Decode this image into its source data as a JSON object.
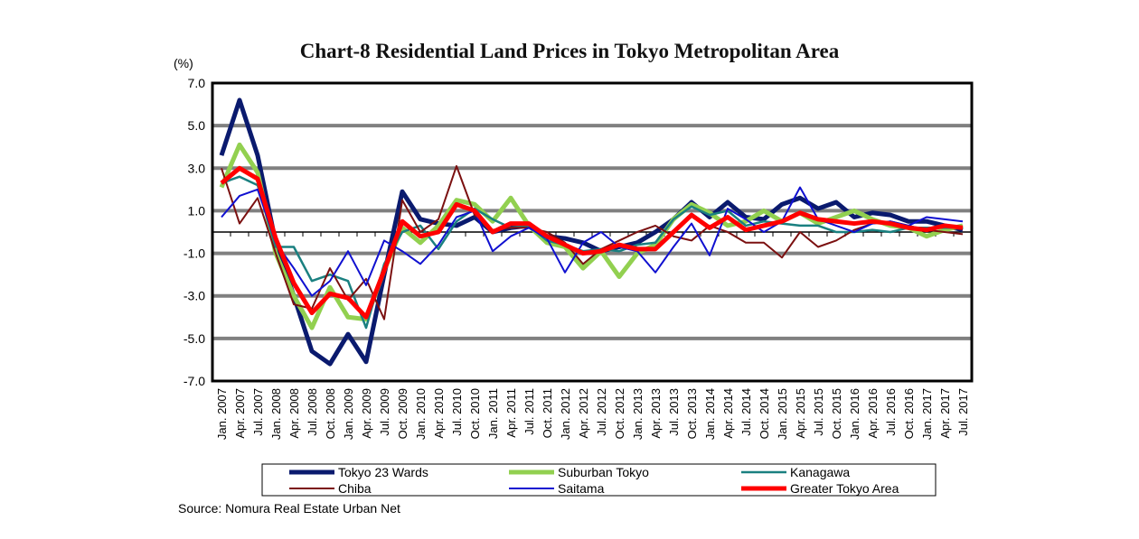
{
  "chart_data": {
    "type": "line",
    "title": "Chart-8 Residential Land Prices in Tokyo Metropolitan Area",
    "ylabel": "(%)",
    "ylim": [
      -7,
      7
    ],
    "yticks": [
      "7.0",
      "5.0",
      "3.0",
      "1.0",
      "-1.0",
      "-3.0",
      "-5.0",
      "-7.0"
    ],
    "grid": true,
    "legend": "bottom",
    "categories": [
      "Jan. 2007",
      "Apr. 2007",
      "Jul. 2007",
      "Jan. 2008",
      "Apr. 2008",
      "Jul. 2008",
      "Oct. 2008",
      "Jan. 2009",
      "Apr. 2009",
      "Jul. 2009",
      "Oct. 2009",
      "Jan. 2010",
      "Apr. 2010",
      "Jul. 2010",
      "Oct. 2010",
      "Jan. 2011",
      "Apr. 2011",
      "Jul. 2011",
      "Oct. 2011",
      "Jan. 2012",
      "Apr. 2012",
      "Jul. 2012",
      "Oct. 2012",
      "Jan. 2013",
      "Apr. 2013",
      "Jul. 2013",
      "Oct. 2013",
      "Jan. 2014",
      "Apr. 2014",
      "Jul. 2014",
      "Oct. 2014",
      "Jan. 2015",
      "Apr. 2015",
      "Jul. 2015",
      "Oct. 2015",
      "Jan. 2016",
      "Apr. 2016",
      "Jul. 2016",
      "Oct. 2016",
      "Jan. 2017",
      "Apr. 2017",
      "Jul. 2017"
    ],
    "series": [
      {
        "name": "Tokyo 23 Wards",
        "color": "#0a1a6e",
        "width": 5,
        "values": [
          3.6,
          6.2,
          3.6,
          -0.5,
          -3.0,
          -5.6,
          -6.2,
          -4.8,
          -6.1,
          -2.0,
          1.9,
          0.6,
          0.4,
          0.3,
          0.7,
          0.0,
          0.2,
          0.3,
          -0.2,
          -0.3,
          -0.5,
          -0.9,
          -0.7,
          -0.5,
          0.0,
          0.6,
          1.4,
          0.7,
          1.4,
          0.7,
          0.6,
          1.3,
          1.6,
          1.1,
          1.4,
          0.7,
          0.9,
          0.8,
          0.5,
          0.5,
          0.3,
          0.1
        ]
      },
      {
        "name": "Suburban Tokyo",
        "color": "#92d050",
        "width": 5,
        "values": [
          2.1,
          4.1,
          2.8,
          -1.0,
          -3.0,
          -4.5,
          -2.6,
          -4.0,
          -4.1,
          -1.8,
          0.2,
          -0.5,
          0.3,
          1.5,
          1.3,
          0.5,
          1.6,
          0.3,
          -0.5,
          -0.7,
          -1.7,
          -0.9,
          -2.1,
          -1.0,
          -0.6,
          0.6,
          1.3,
          0.9,
          0.3,
          0.5,
          1.0,
          0.5,
          0.9,
          0.4,
          0.7,
          1.0,
          0.6,
          0.3,
          0.2,
          -0.2,
          0.1,
          0.3
        ]
      },
      {
        "name": "Kanagawa",
        "color": "#1a8080",
        "width": 2.5,
        "values": [
          2.3,
          2.6,
          2.2,
          -0.7,
          -0.7,
          -2.3,
          -2.0,
          -2.3,
          -4.5,
          -1.5,
          0.0,
          0.3,
          -0.8,
          0.5,
          1.1,
          0.6,
          0.2,
          0.3,
          -0.4,
          -0.6,
          -0.9,
          -0.8,
          -0.9,
          -0.6,
          -0.5,
          0.6,
          1.2,
          0.8,
          1.0,
          0.3,
          0.5,
          0.4,
          0.3,
          0.3,
          0.0,
          0.0,
          0.1,
          0.0,
          0.2,
          0.2,
          0.2,
          0.2
        ]
      },
      {
        "name": "Chiba",
        "color": "#7b1010",
        "width": 2,
        "values": [
          3.0,
          0.4,
          1.6,
          -1.0,
          -3.4,
          -3.6,
          -1.7,
          -3.2,
          -2.2,
          -4.1,
          1.5,
          0.0,
          0.6,
          3.1,
          0.8,
          0.1,
          0.2,
          0.2,
          0.0,
          -0.5,
          -1.5,
          -0.8,
          -0.4,
          0.0,
          0.3,
          -0.2,
          -0.4,
          0.3,
          0.0,
          -0.5,
          -0.5,
          -1.2,
          0.0,
          -0.7,
          -0.4,
          0.1,
          0.4,
          0.5,
          0.3,
          0.1,
          0.0,
          -0.1
        ]
      },
      {
        "name": "Saitama",
        "color": "#1010d0",
        "width": 2,
        "values": [
          0.7,
          1.7,
          2.0,
          -0.5,
          -1.7,
          -3.0,
          -2.3,
          -0.9,
          -2.5,
          -0.4,
          -0.9,
          -1.5,
          -0.6,
          0.7,
          1.0,
          -0.9,
          -0.2,
          0.2,
          -0.3,
          -1.9,
          -0.5,
          0.0,
          -0.7,
          -0.9,
          -1.9,
          -0.7,
          0.4,
          -1.1,
          1.1,
          0.6,
          0.0,
          0.5,
          2.1,
          0.6,
          0.3,
          0.0,
          0.4,
          0.5,
          0.3,
          0.7,
          0.6,
          0.5
        ]
      },
      {
        "name": "Greater Tokyo Area",
        "color": "#ff0000",
        "width": 5,
        "values": [
          2.3,
          3.0,
          2.5,
          -0.3,
          -2.4,
          -3.8,
          -2.9,
          -3.1,
          -4.0,
          -1.8,
          0.5,
          -0.2,
          0.0,
          1.3,
          1.0,
          0.0,
          0.4,
          0.4,
          -0.2,
          -0.6,
          -1.0,
          -0.9,
          -0.6,
          -0.8,
          -0.8,
          0.0,
          0.8,
          0.2,
          0.7,
          0.1,
          0.3,
          0.5,
          0.9,
          0.6,
          0.5,
          0.4,
          0.5,
          0.4,
          0.2,
          0.1,
          0.3,
          0.2
        ]
      }
    ]
  },
  "source": "Source: Nomura Real Estate Urban Net"
}
